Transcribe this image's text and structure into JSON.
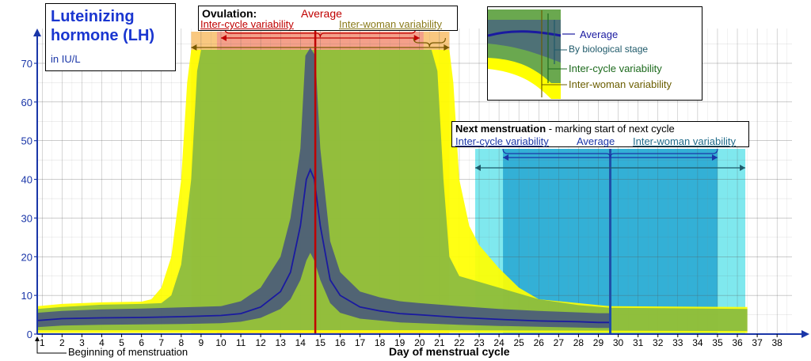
{
  "chart_data": {
    "type": "area",
    "title": "Luteinizing hormone (LH)",
    "units": "in IU/L",
    "xlabel": "Day of menstrual cycle",
    "x_ticks": [
      1,
      2,
      3,
      4,
      5,
      6,
      7,
      8,
      9,
      10,
      11,
      12,
      13,
      14,
      15,
      16,
      17,
      18,
      19,
      20,
      21,
      22,
      23,
      24,
      25,
      26,
      27,
      28,
      29,
      30,
      31,
      32,
      33,
      34,
      35,
      36,
      37,
      38
    ],
    "y_ticks": [
      0,
      10,
      20,
      30,
      40,
      50,
      60,
      70
    ],
    "xlim": [
      0.75,
      38.75
    ],
    "ylim": [
      0,
      79
    ],
    "colors": {
      "axis": "#1a36a8",
      "average_line": "#1a1aa0",
      "biological_stage": "#4b5c7a",
      "inter_cycle": "#6aa84f",
      "inter_woman": "#ffff00",
      "ovulation_average": "#c00000",
      "ovulation_inner": "#f4a08a",
      "ovulation_outer": "#f9c880",
      "menstruation_average": "#1f4fa8",
      "menstruation_inner": "#33b0d6",
      "menstruation_outer": "#7fe8ee"
    },
    "series": [
      {
        "name": "Average",
        "x": [
          0.75,
          2,
          4,
          6,
          8,
          10,
          11,
          12,
          13,
          13.5,
          14,
          14.3,
          14.5,
          14.7,
          15,
          15.5,
          16,
          17,
          18,
          19,
          20,
          22,
          24,
          26,
          28,
          29,
          29.6
        ],
        "y": [
          3.5,
          4,
          4.2,
          4.3,
          4.5,
          4.8,
          5.3,
          7,
          11,
          16,
          28,
          40,
          42.5,
          40,
          28,
          14,
          10,
          7,
          6,
          5.3,
          5,
          4.3,
          3.8,
          3.4,
          3.2,
          3,
          3
        ]
      },
      {
        "name": "By biological stage",
        "upper_x": [
          0.75,
          2,
          4,
          6,
          8,
          10,
          11,
          12,
          13,
          13.5,
          14,
          14.25,
          14.5,
          14.75,
          15,
          15.5,
          16,
          17,
          18,
          19,
          20,
          22,
          24,
          26,
          28,
          29,
          29.6
        ],
        "upper_y": [
          5.5,
          6,
          6.4,
          6.6,
          6.9,
          7.2,
          8.5,
          12,
          20,
          30,
          48,
          72,
          74,
          72,
          48,
          24,
          16,
          11,
          9.5,
          8.5,
          8,
          7.2,
          6.5,
          6,
          5.6,
          5.4,
          5.4
        ],
        "lower_x": [
          0.75,
          2,
          4,
          6,
          8,
          10,
          11,
          12,
          13,
          13.5,
          14,
          14.3,
          14.5,
          14.7,
          15,
          15.5,
          16,
          17,
          18,
          19,
          20,
          22,
          24,
          26,
          28,
          29,
          29.6
        ],
        "lower_y": [
          1.8,
          2.2,
          2.4,
          2.5,
          2.6,
          2.8,
          3.2,
          4.2,
          6.5,
          9,
          14,
          19,
          21,
          19,
          14,
          8,
          5.5,
          4,
          3.5,
          3,
          2.8,
          2.4,
          2.1,
          1.9,
          1.7,
          1.6,
          1.6
        ]
      },
      {
        "name": "Inter-cycle variability",
        "upper_x": [
          0.75,
          2,
          4,
          6,
          7,
          7.5,
          8,
          8.5,
          8.8,
          9,
          9.3,
          20.3,
          20.6,
          20.9,
          21.2,
          21.5,
          22,
          24,
          26,
          28,
          29.6,
          36.5
        ],
        "upper_y": [
          6.5,
          7,
          7.6,
          7.8,
          8,
          10,
          18,
          40,
          68,
          73.5,
          73.5,
          73.5,
          73.5,
          68,
          40,
          20,
          15,
          12,
          9,
          7.5,
          6.8,
          6.5
        ],
        "lower_x": [
          0.75,
          5,
          10,
          20,
          29.6,
          36.5
        ],
        "lower_y": [
          1,
          1,
          1,
          1,
          0.9,
          0.8
        ]
      },
      {
        "name": "Inter-woman variability",
        "upper_x": [
          0.75,
          2,
          4,
          6,
          6.5,
          7,
          7.5,
          8,
          8.3,
          8.5,
          8.7,
          21.3,
          21.5,
          21.7,
          22,
          22.5,
          23,
          24,
          25,
          26,
          28,
          29.6,
          36.5
        ],
        "upper_y": [
          7.2,
          7.8,
          8.2,
          8.4,
          9,
          12,
          20,
          40,
          65,
          73.5,
          73.5,
          73.5,
          73.5,
          65,
          40,
          28,
          23,
          17,
          12,
          9,
          8,
          7.2,
          7
        ],
        "lower_x": [
          0.75,
          36.5
        ],
        "lower_y": [
          0.3,
          0.3
        ]
      }
    ],
    "ovulation": {
      "label": "Ovulation:",
      "average_label": "Average",
      "inter_cycle_label": "Inter-cycle variability",
      "inter_woman_label": "Inter-woman variability",
      "average_day": 14.75,
      "inter_cycle_range": [
        9.8,
        20.2
      ],
      "inter_woman_range": [
        8.5,
        21.5
      ]
    },
    "next_menstruation": {
      "label": "Next menstruation",
      "label_rest": " - marking start of next cycle",
      "average_label": "Average",
      "inter_cycle_label": "Inter-cycle variability",
      "inter_woman_label": "Inter-woman variability",
      "average_day": 29.6,
      "inter_cycle_range": [
        24.2,
        35.0
      ],
      "inter_woman_range": [
        22.8,
        36.4
      ]
    },
    "legend": {
      "placement": "top-right",
      "average": "Average",
      "biological_stage": "By biological stage",
      "inter_cycle": "Inter-cycle variability",
      "inter_woman": "Inter-woman variability"
    },
    "annotations": {
      "beginning": "Beginning of menstruation"
    }
  }
}
